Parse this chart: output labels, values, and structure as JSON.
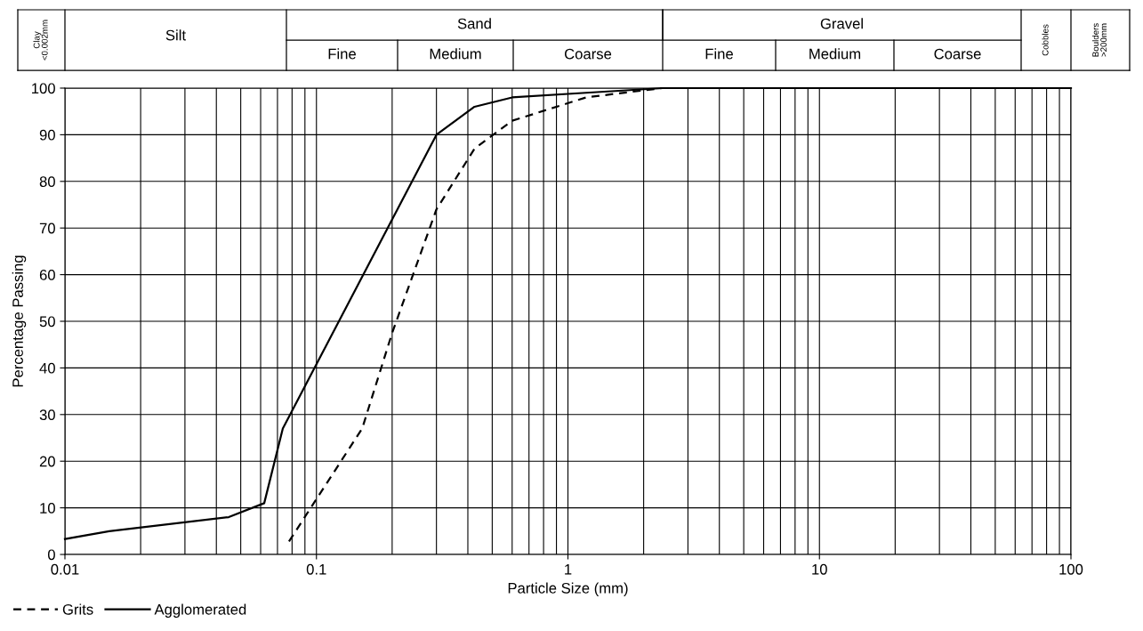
{
  "chart_data": {
    "type": "line",
    "xlabel": "Particle Size (mm)",
    "ylabel": "Percentage Passing",
    "log": "x",
    "xlim": [
      0.01,
      100
    ],
    "xticks": [
      0.01,
      0.1,
      1,
      10,
      100
    ],
    "ylim": [
      0,
      100
    ],
    "yticks": [
      0,
      10,
      20,
      30,
      40,
      50,
      60,
      70,
      80,
      90,
      100
    ],
    "grid": true,
    "legend": "bottom left",
    "annotations": [
      "Clay\n<0.002mm",
      "Silt",
      "Sand",
      "Fine",
      "Medium",
      "Coarse",
      "Gravel",
      "Fine",
      "Medium",
      "Coarse",
      "Cobbles",
      "Boulders\n>200mm"
    ],
    "series": [
      {
        "name": "Grits",
        "color": "#000000",
        "line_style": "dashed",
        "x": [
          0.0778,
          0.152,
          0.2,
          0.3,
          0.425,
          0.6,
          1.18,
          2.36,
          100
        ],
        "values": [
          2.8,
          27,
          47.5,
          74,
          87,
          93,
          98,
          100,
          100
        ]
      },
      {
        "name": "Agglomerated",
        "color": "#000000",
        "line_style": "solid",
        "x": [
          0.01,
          0.015,
          0.0448,
          0.062,
          0.0735,
          0.3,
          0.425,
          0.6,
          1.18,
          2.38,
          100
        ],
        "values": [
          3.3,
          5,
          8,
          11,
          27,
          90,
          96,
          98,
          99,
          100,
          100
        ]
      }
    ]
  }
}
